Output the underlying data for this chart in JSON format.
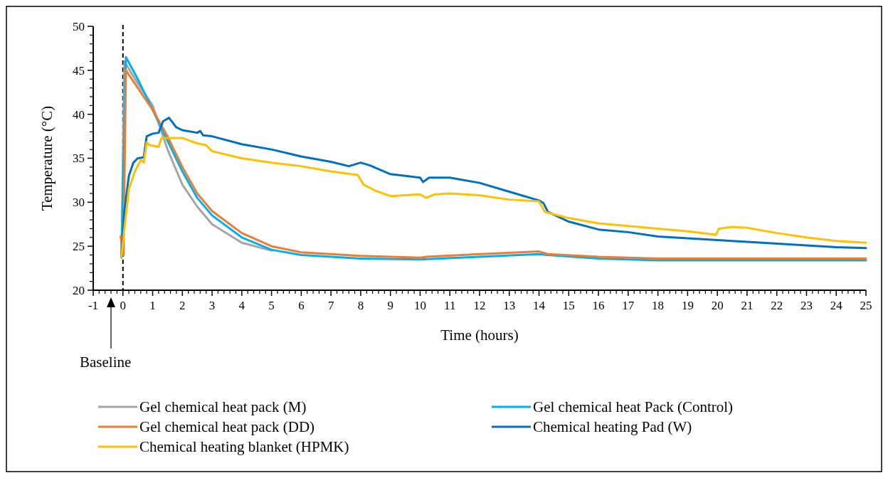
{
  "chart_data": {
    "type": "line",
    "xlabel": "Time (hours)",
    "ylabel": "Temperature (°C)",
    "xlim": [
      -1,
      25
    ],
    "xticks": [
      -1,
      0,
      1,
      2,
      3,
      4,
      5,
      6,
      7,
      8,
      9,
      10,
      11,
      12,
      13,
      14,
      15,
      16,
      17,
      18,
      19,
      20,
      21,
      22,
      23,
      24,
      25
    ],
    "ylim": [
      20,
      50
    ],
    "yticks": [
      20,
      25,
      30,
      35,
      40,
      45,
      50
    ],
    "grid": false,
    "legend": "bottom",
    "line_style": "solid",
    "ref_lines": [
      {
        "axis": "x",
        "value": 0,
        "color": "#000000",
        "line_style": "dashed"
      }
    ],
    "annotations": [
      "Baseline"
    ],
    "series": [
      {
        "name": "Gel chemical heat pack (M)",
        "color": "#a5a5a5",
        "x": [
          -0.05,
          0.05,
          0.5,
          1,
          1.5,
          2,
          2.5,
          3,
          4,
          5
        ],
        "values": [
          23.8,
          46,
          43.5,
          41,
          36,
          32,
          29.5,
          27.5,
          25.4,
          24.5
        ]
      },
      {
        "name": "Gel chemical heat Pack (Control)",
        "color": "#00b0f0",
        "x": [
          -0.05,
          0.1,
          0.5,
          1,
          1.5,
          2,
          2.5,
          3,
          4,
          5,
          6,
          8,
          10,
          12,
          14,
          14.3,
          16,
          18,
          20,
          25
        ],
        "values": [
          23.7,
          46.5,
          44,
          40.5,
          37,
          33.5,
          30.5,
          28.5,
          26,
          24.6,
          24,
          23.6,
          23.5,
          23.8,
          24.1,
          24,
          23.6,
          23.4,
          23.4,
          23.4
        ]
      },
      {
        "name": "Gel chemical heat pack (DD)",
        "color": "#ed7d31",
        "x": [
          -0.08,
          0.02,
          0.1,
          0.5,
          1,
          1.5,
          2,
          2.5,
          3,
          4,
          5,
          6,
          8,
          10,
          10.2,
          12,
          14,
          14.3,
          16,
          18,
          25
        ],
        "values": [
          26.1,
          24,
          45,
          43,
          40.5,
          37.5,
          34,
          31,
          29,
          26.5,
          25,
          24.3,
          23.9,
          23.7,
          23.8,
          24.1,
          24.4,
          24.1,
          23.8,
          23.6,
          23.6
        ]
      },
      {
        "name": "Chemical heating Pad (W)",
        "color": "#0070c0",
        "x": [
          -0.05,
          0.05,
          0.2,
          0.35,
          0.5,
          0.7,
          0.8,
          1,
          1.2,
          1.35,
          1.55,
          1.8,
          2,
          2.5,
          2.6,
          2.7,
          3,
          4,
          5,
          6,
          7,
          7.6,
          8,
          8.3,
          9,
          10,
          10.1,
          10.3,
          11,
          12,
          13,
          14,
          14.15,
          14.3,
          15,
          16,
          17,
          18,
          19,
          20,
          21,
          22,
          23,
          24,
          25
        ],
        "values": [
          23.8,
          29,
          33,
          34.5,
          35,
          35.1,
          37.5,
          37.8,
          37.9,
          39.2,
          39.6,
          38.5,
          38.2,
          37.9,
          38.1,
          37.6,
          37.5,
          36.6,
          36,
          35.2,
          34.6,
          34.1,
          34.5,
          34.2,
          33.2,
          32.8,
          32.3,
          32.8,
          32.8,
          32.2,
          31.2,
          30.2,
          29.9,
          28.9,
          27.8,
          26.9,
          26.6,
          26.1,
          25.9,
          25.7,
          25.5,
          25.3,
          25.1,
          24.9,
          24.8
        ]
      },
      {
        "name": "Chemical heating blanket (HPMK)",
        "color": "#ffc000",
        "x": [
          -0.05,
          0.05,
          0.2,
          0.4,
          0.6,
          0.7,
          0.8,
          0.9,
          1.2,
          1.3,
          2,
          2.5,
          2.8,
          3,
          4,
          5,
          6,
          7,
          7.9,
          8.1,
          8.5,
          9,
          10,
          10.2,
          10.5,
          11,
          12,
          13,
          14,
          14.2,
          15,
          16,
          17,
          18,
          19,
          19.95,
          20.05,
          20.5,
          21,
          22,
          23,
          24,
          25
        ],
        "values": [
          23.8,
          27,
          31.5,
          33.5,
          34.8,
          34.5,
          36.8,
          36.5,
          36.3,
          37.3,
          37.3,
          36.7,
          36.5,
          35.8,
          35,
          34.5,
          34.1,
          33.5,
          33.1,
          32,
          31.3,
          30.7,
          30.9,
          30.5,
          30.9,
          31,
          30.8,
          30.3,
          30.1,
          28.9,
          28.2,
          27.6,
          27.3,
          27,
          26.7,
          26.3,
          27,
          27.2,
          27.1,
          26.5,
          26,
          25.6,
          25.4
        ]
      }
    ]
  }
}
